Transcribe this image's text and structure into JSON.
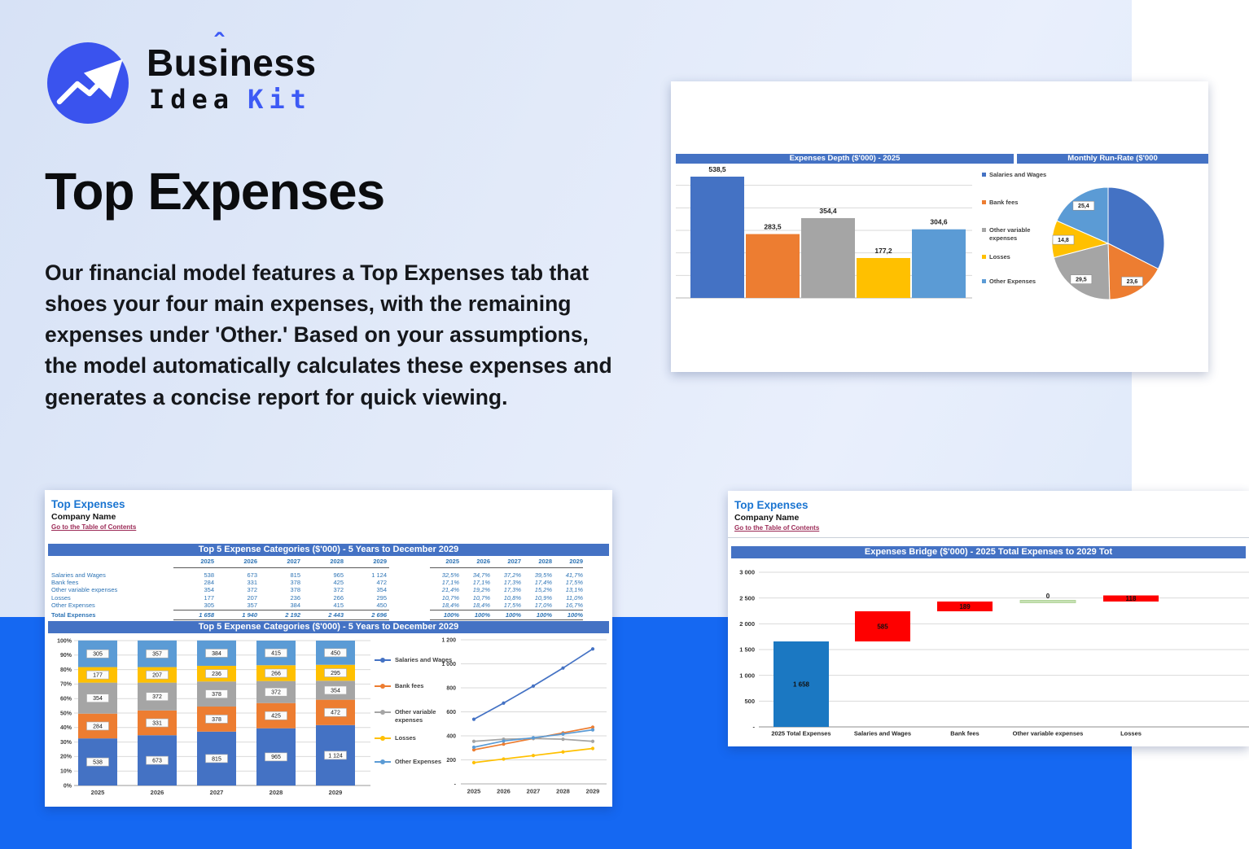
{
  "logo": {
    "word1_pre": "Bus",
    "word1_i": "i",
    "caret": "ˆ",
    "word1_post": "ness",
    "word2": "Idea",
    "word3": "Kit"
  },
  "hero": {
    "title": "Top Expenses",
    "description": "Our financial model features a Top Expenses tab that shoes your four main expenses, with the remaining expenses under 'Other.' Based on your assumptions, the model automatically calculates these expenses and generates a concise report for quick viewing."
  },
  "colors": {
    "band": "#1568F2",
    "header_bar": "#4472C4",
    "table_text": "#2E74B5",
    "card_title": "#1B75D1",
    "link": "#9C2B57",
    "logo_blue": "#3A53EE",
    "accent_blue": "#3D5AF5",
    "series": [
      "#4472C4",
      "#ED7D31",
      "#A5A5A5",
      "#FFC000",
      "#5B9BD5"
    ],
    "waterfall_total": "#1B78C2",
    "waterfall_increase": "#FE0000",
    "waterfall_zero": "#C6E0B4"
  },
  "cards": {
    "top5": {
      "title": "Top Expenses",
      "company": "Company Name",
      "link": "Go to the Table of Contents",
      "section_title": "Top 5 Expense Categories ($'000) - 5 Years to December 2029",
      "table": {
        "years": [
          "2025",
          "2026",
          "2027",
          "2028",
          "2029"
        ],
        "rows": [
          {
            "label": "Salaries and Wages",
            "values": [
              "538",
              "673",
              "815",
              "965",
              "1 124"
            ],
            "pcts": [
              "32,5%",
              "34,7%",
              "37,2%",
              "39,5%",
              "41,7%"
            ]
          },
          {
            "label": "Bank fees",
            "values": [
              "284",
              "331",
              "378",
              "425",
              "472"
            ],
            "pcts": [
              "17,1%",
              "17,1%",
              "17,3%",
              "17,4%",
              "17,5%"
            ]
          },
          {
            "label": "Other variable expenses",
            "values": [
              "354",
              "372",
              "378",
              "372",
              "354"
            ],
            "pcts": [
              "21,4%",
              "19,2%",
              "17,3%",
              "15,2%",
              "13,1%"
            ]
          },
          {
            "label": "Losses",
            "values": [
              "177",
              "207",
              "236",
              "266",
              "295"
            ],
            "pcts": [
              "10,7%",
              "10,7%",
              "10,8%",
              "10,9%",
              "11,0%"
            ]
          },
          {
            "label": "Other Expenses",
            "values": [
              "305",
              "357",
              "384",
              "415",
              "450"
            ],
            "pcts": [
              "18,4%",
              "18,4%",
              "17,5%",
              "17,0%",
              "16,7%"
            ]
          }
        ],
        "total": {
          "label": "Total Expenses",
          "values": [
            "1 658",
            "1 940",
            "2 192",
            "2 443",
            "2 696"
          ],
          "pcts": [
            "100%",
            "100%",
            "100%",
            "100%",
            "100%"
          ]
        }
      }
    },
    "bridge": {
      "title": "Top Expenses",
      "company": "Company Name",
      "link": "Go to the Table of Contents"
    }
  },
  "chart_data": [
    {
      "id": "expenses_depth",
      "type": "bar",
      "title": "Expenses Depth ($'000) - 2025",
      "categories": [
        "Salaries and Wages",
        "Bank fees",
        "Other variable expenses",
        "Losses",
        "Other Expenses"
      ],
      "values": [
        538.5,
        283.5,
        354.4,
        177.2,
        304.6
      ],
      "labels": [
        "538,5",
        "283,5",
        "354,4",
        "177,2",
        "304,6"
      ],
      "colors": [
        "#4472C4",
        "#ED7D31",
        "#A5A5A5",
        "#FFC000",
        "#5B9BD5"
      ],
      "ylim": [
        0,
        540
      ],
      "gridline_step": 100,
      "legend_position": "right"
    },
    {
      "id": "monthly_runrate",
      "type": "pie",
      "title": "Monthly Run-Rate ($'000",
      "slices": [
        {
          "name": "Salaries and Wages",
          "value": 44.9,
          "label": "",
          "color": "#4472C4"
        },
        {
          "name": "Bank fees",
          "value": 23.6,
          "label": "23,6",
          "color": "#ED7D31"
        },
        {
          "name": "Other variable expenses",
          "value": 29.5,
          "label": "29,5",
          "color": "#A5A5A5"
        },
        {
          "name": "Losses",
          "value": 14.8,
          "label": "14,8",
          "color": "#FFC000"
        },
        {
          "name": "Other Expenses",
          "value": 25.4,
          "label": "25,4",
          "color": "#5B9BD5"
        }
      ]
    },
    {
      "id": "top5_stacked",
      "type": "bar",
      "subtype": "stacked-100",
      "title": "Top 5 Expense Categories ($'000) - 5 Years to December 2029",
      "categories": [
        "2025",
        "2026",
        "2027",
        "2028",
        "2029"
      ],
      "yticks": [
        "0%",
        "10%",
        "20%",
        "30%",
        "40%",
        "50%",
        "60%",
        "70%",
        "80%",
        "90%",
        "100%"
      ],
      "series": [
        {
          "name": "Salaries and Wages",
          "color": "#4472C4",
          "values": [
            538,
            673,
            815,
            965,
            1124
          ],
          "labels": [
            "538",
            "673",
            "815",
            "965",
            "1 124"
          ],
          "pct": [
            32.5,
            34.7,
            37.2,
            39.5,
            41.7
          ]
        },
        {
          "name": "Bank fees",
          "color": "#ED7D31",
          "values": [
            284,
            331,
            378,
            425,
            472
          ],
          "labels": [
            "284",
            "331",
            "378",
            "425",
            "472"
          ],
          "pct": [
            17.1,
            17.1,
            17.3,
            17.4,
            17.5
          ]
        },
        {
          "name": "Other variable expenses",
          "color": "#A5A5A5",
          "values": [
            354,
            372,
            378,
            372,
            354
          ],
          "labels": [
            "354",
            "372",
            "378",
            "372",
            "354"
          ],
          "pct": [
            21.4,
            19.2,
            17.3,
            15.2,
            13.1
          ]
        },
        {
          "name": "Losses",
          "color": "#FFC000",
          "values": [
            177,
            207,
            236,
            266,
            295
          ],
          "labels": [
            "177",
            "207",
            "236",
            "266",
            "295"
          ],
          "pct": [
            10.7,
            10.7,
            10.8,
            10.9,
            11.0
          ]
        },
        {
          "name": "Other Expenses",
          "color": "#5B9BD5",
          "values": [
            305,
            357,
            384,
            415,
            450
          ],
          "labels": [
            "305",
            "357",
            "384",
            "415",
            "450"
          ],
          "pct": [
            18.4,
            18.4,
            17.5,
            17.0,
            16.7
          ]
        }
      ]
    },
    {
      "id": "top5_lines",
      "type": "line",
      "x": [
        "2025",
        "2026",
        "2027",
        "2028",
        "2029"
      ],
      "ylim": [
        0,
        1200
      ],
      "yticks": [
        "-",
        "200",
        "400",
        "600",
        "800",
        "1 000",
        "1 200"
      ],
      "series": [
        {
          "name": "Salaries and Wages",
          "color": "#4472C4",
          "values": [
            538,
            673,
            815,
            965,
            1124
          ]
        },
        {
          "name": "Bank fees",
          "color": "#ED7D31",
          "values": [
            284,
            331,
            378,
            425,
            472
          ]
        },
        {
          "name": "Other variable expenses",
          "color": "#A5A5A5",
          "values": [
            354,
            372,
            378,
            372,
            354
          ]
        },
        {
          "name": "Losses",
          "color": "#FFC000",
          "values": [
            177,
            207,
            236,
            266,
            295
          ]
        },
        {
          "name": "Other Expenses",
          "color": "#5B9BD5",
          "values": [
            305,
            357,
            384,
            415,
            450
          ]
        }
      ],
      "legend_position": "left"
    },
    {
      "id": "expenses_bridge",
      "type": "waterfall",
      "title": "Expenses Bridge ($'000) - 2025 Total Expenses to 2029 Tot",
      "categories": [
        "2025 Total Expenses",
        "Salaries and Wages",
        "Bank fees",
        "Other variable expenses",
        "Losses"
      ],
      "values": [
        1658,
        585,
        189,
        0,
        118
      ],
      "bases": [
        0,
        1658,
        2243,
        2432,
        2432
      ],
      "labels": [
        "1 658",
        "585",
        "189",
        "0",
        "118"
      ],
      "colors": [
        "#1B78C2",
        "#FE0000",
        "#FE0000",
        "#C6E0B4",
        "#FE0000"
      ],
      "ylim": [
        0,
        3000
      ],
      "yticks": [
        "-",
        "500",
        "1 000",
        "1 500",
        "2 000",
        "2 500",
        "3 000"
      ]
    }
  ]
}
